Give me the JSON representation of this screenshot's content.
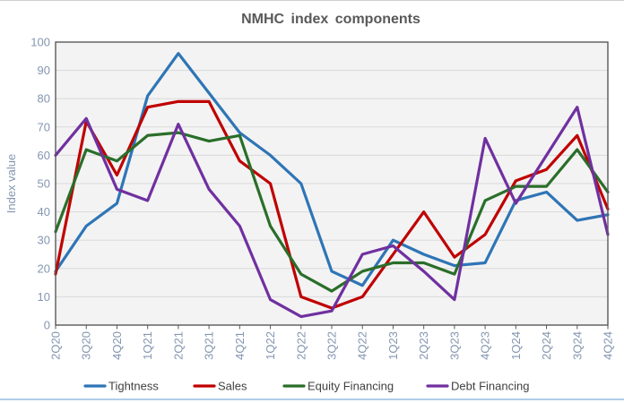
{
  "title": "NMHC index components",
  "y_axis": {
    "label": "Index value"
  },
  "chart_data": {
    "type": "line",
    "title": "NMHC index components",
    "ylabel": "Index value",
    "xlabel": "",
    "ylim": [
      0,
      100
    ],
    "y_tick_step": 10,
    "grid": true,
    "legend_position": "bottom",
    "categories": [
      "2Q20",
      "3Q20",
      "4Q20",
      "1Q21",
      "2Q21",
      "3Q21",
      "4Q21",
      "1Q22",
      "2Q22",
      "3Q22",
      "4Q22",
      "1Q23",
      "2Q23",
      "3Q23",
      "4Q23",
      "1Q24",
      "2Q24",
      "3Q24",
      "4Q24"
    ],
    "series": [
      {
        "name": "Tightness",
        "color": "#2E75B6",
        "values": [
          19,
          35,
          43,
          81,
          96,
          82,
          68,
          60,
          50,
          19,
          14,
          30,
          25,
          21,
          22,
          44,
          47,
          37,
          39
        ]
      },
      {
        "name": "Sales",
        "color": "#C00000",
        "values": [
          18,
          72,
          53,
          77,
          79,
          79,
          58,
          50,
          10,
          6,
          10,
          25,
          40,
          24,
          32,
          51,
          55,
          67,
          41
        ]
      },
      {
        "name": "Equity Financing",
        "color": "#2A6E2A",
        "values": [
          33,
          62,
          58,
          67,
          68,
          65,
          67,
          35,
          18,
          12,
          19,
          22,
          22,
          18,
          44,
          49,
          49,
          62,
          47
        ]
      },
      {
        "name": "Debt Financing",
        "color": "#7030A0",
        "values": [
          60,
          73,
          48,
          44,
          71,
          48,
          35,
          9,
          3,
          5,
          25,
          28,
          19,
          9,
          66,
          43,
          60,
          77,
          32
        ]
      }
    ]
  },
  "colors": {
    "plot_bg": "#F3F3F3",
    "grid": "#D9D9D9",
    "axis": "#595959",
    "tick_label": "#8496B0",
    "title_text": "#595959",
    "legend_text": "#404040",
    "top_rule": "#CFCFCF",
    "bottom_rule": "#AECDE8"
  }
}
